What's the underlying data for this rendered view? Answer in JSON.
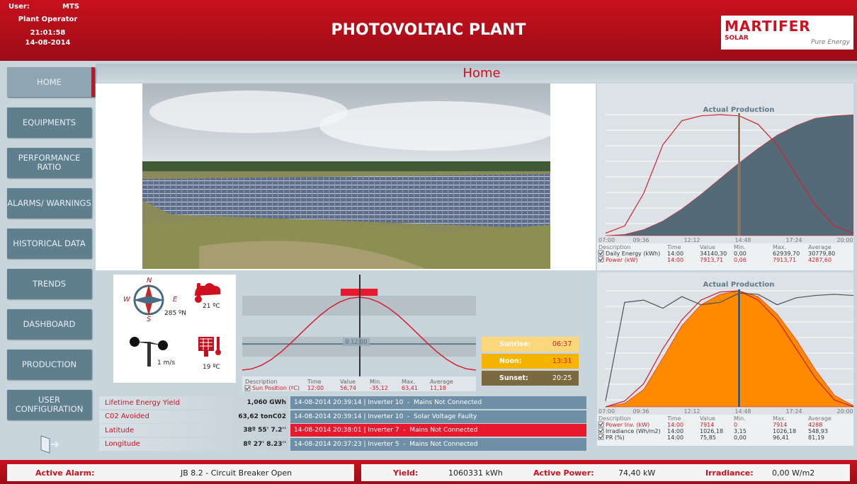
{
  "header": {
    "user_label": "User:",
    "user": "MTS",
    "role": "Plant Operator",
    "time": "21:01:58",
    "date": "14-08-2014",
    "title": "PHOTOVOLTAIC PLANT",
    "logo": {
      "brand": "MARTIFER",
      "sub": "SOLAR",
      "tagline": "Pure Energy"
    }
  },
  "nav": [
    "HOME",
    "EQUIPMENTS",
    "PERFORMANCE RATIO",
    "ALARMS/ WARNINGS",
    "HISTORICAL DATA",
    "TRENDS",
    "DASHBOARD",
    "PRODUCTION",
    "USER CONFIGURATION"
  ],
  "page_title": "Home",
  "weather": {
    "compass": [
      "N",
      "E",
      "S",
      "W"
    ],
    "wind_direction": "285 ºN",
    "air_temp": "21 ºC",
    "wind_speed": "1 m/s",
    "panel_temp": "19 ºC"
  },
  "sun_chart": {
    "type": "line",
    "color": "#d81e2c",
    "ylim": [
      -40,
      70
    ],
    "cursor_label": "0 12:00",
    "values": [
      -35.2,
      -33.5,
      -28.6,
      -20.8,
      -10.6,
      1.3,
      14.1,
      26.9,
      38.8,
      49.0,
      56.8,
      61.7,
      63.4,
      61.7,
      56.8,
      49.0,
      38.8,
      26.9,
      14.1,
      1.3,
      -10.6,
      -20.8,
      -28.6,
      -33.5,
      -35.2
    ],
    "columns": [
      "Description",
      "Time",
      "Value",
      "Min.",
      "Max.",
      "Average"
    ],
    "row": [
      "Sun Position (ºC)",
      "12:00",
      "56,74",
      "-35,12",
      "63,41",
      "11,18"
    ]
  },
  "sun_times": [
    {
      "label": "Sunrise:",
      "time": "06:37",
      "color": "#fbd67a",
      "text": "#d81e2c"
    },
    {
      "label": "Noon:",
      "time": "13:31",
      "color": "#f6b400",
      "text": "#d81e2c"
    },
    {
      "label": "Sunset:",
      "time": "20:25",
      "color": "#7b6a40",
      "text": "#ffffff"
    }
  ],
  "summary": [
    {
      "label": "Lifetime Energy Yield",
      "value": "1,060 GWh"
    },
    {
      "label": "C02 Avoided",
      "value": "63,62 tonC02"
    },
    {
      "label": "Latitude",
      "value": "38º 55' 7.2''"
    },
    {
      "label": "Longitude",
      "value": "8º 27' 8.23''"
    }
  ],
  "alarms": [
    {
      "text": "14-08-2014 20:39:14 | Inverter 10  -  Mains Not Connected",
      "color": "#6f8fa6"
    },
    {
      "text": "14-08-2014 20:39:14 | Inverter 10  -  Solar Voltage Faulty",
      "color": "#6f8fa6"
    },
    {
      "text": "14-08-2014 20:38:01 | Inverter 7  -  Mains Not Connected",
      "color": "#e8192c"
    },
    {
      "text": "14-08-2014 20:37:23 | Inverter 5  -  Mains Not Connected",
      "color": "#6f8fa6"
    }
  ],
  "charts": [
    {
      "type": "area",
      "title": "Actual Production",
      "ylim": [
        0,
        100
      ],
      "xticks": [
        "07:00",
        "09:36",
        "12:12",
        "14:48",
        "17:24",
        "20:00"
      ],
      "series": [
        {
          "name": "Daily Energy (kWh)",
          "kind": "area",
          "color": "#536a78",
          "values": [
            0,
            1,
            5,
            12,
            22,
            34,
            47,
            60,
            72,
            83,
            91,
            97,
            99,
            100
          ]
        },
        {
          "name": "Power (kW)",
          "kind": "line",
          "color": "#d81e2c",
          "values": [
            2,
            8,
            35,
            75,
            95,
            99,
            100,
            99,
            92,
            75,
            50,
            25,
            8,
            2
          ]
        }
      ],
      "columns": [
        "Description",
        "Time",
        "Value",
        "Min.",
        "Max.",
        "Average"
      ],
      "rows": [
        {
          "cells": [
            "Daily Energy (kWh)",
            "14:00",
            "34140,30",
            "0,00",
            "62939,70",
            "30779,80"
          ],
          "color": "#333333"
        },
        {
          "cells": [
            "Power (kW)",
            "14:00",
            "7913,71",
            "0,06",
            "7913,71",
            "4287,60"
          ],
          "color": "#d81e2c"
        }
      ]
    },
    {
      "type": "area",
      "title": "Actual Production",
      "ylim": [
        0,
        100
      ],
      "xticks": [
        "07:00",
        "09:36",
        "12:12",
        "14:48",
        "17:24",
        "20:00"
      ],
      "series": [
        {
          "name": "Power Inv. (kW)",
          "kind": "area",
          "color": "#ff8a00",
          "values": [
            0,
            3,
            15,
            42,
            70,
            88,
            97,
            100,
            95,
            80,
            58,
            32,
            10,
            1
          ]
        },
        {
          "name": "Irradiance (Wh/m2)",
          "kind": "line",
          "color": "#c8202e",
          "values": [
            0,
            5,
            20,
            50,
            75,
            92,
            99,
            100,
            92,
            75,
            50,
            25,
            6,
            0
          ]
        },
        {
          "name": "PR (%)",
          "kind": "line",
          "color": "#505050",
          "values": [
            5,
            90,
            92,
            85,
            95,
            88,
            90,
            98,
            97,
            88,
            94,
            96,
            97,
            96
          ]
        }
      ],
      "columns": [
        "Description",
        "Time",
        "Value",
        "Min.",
        "Max.",
        "Average"
      ],
      "rows": [
        {
          "cells": [
            "Power Inv. (kW)",
            "14:00",
            "7914",
            "0",
            "7914",
            "4288"
          ],
          "color": "#d81e2c"
        },
        {
          "cells": [
            "Irradiance (Wh/m2)",
            "14:00",
            "1026,18",
            "3,15",
            "1026,18",
            "548,93"
          ],
          "color": "#333333"
        },
        {
          "cells": [
            "PR (%)",
            "14:00",
            "75,85",
            "0,00",
            "96,41",
            "81,19"
          ],
          "color": "#333333"
        }
      ]
    }
  ],
  "footer": {
    "alarm_label": "Active Alarm:",
    "alarm": "JB 8.2 - Circuit Breaker Open",
    "yield_label": "Yield:",
    "yield": "1060331 kWh",
    "power_label": "Active Power:",
    "power": "74,40 kW",
    "irradiance_label": "Irradiance:",
    "irradiance": "0,00 W/m2"
  }
}
